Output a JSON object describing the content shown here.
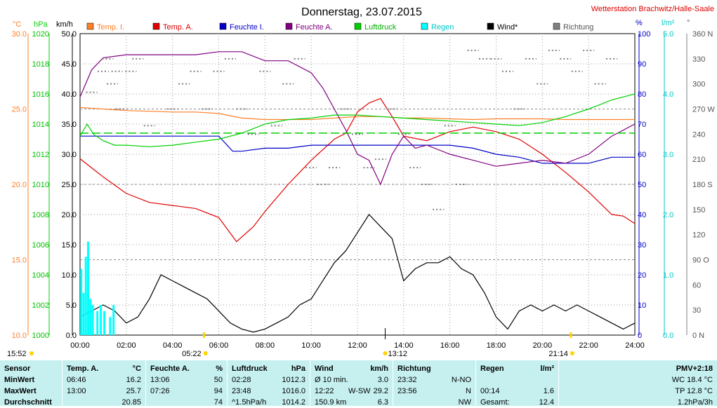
{
  "header": {
    "title": "Donnerstag, 23.07.2015",
    "station": "Wetterstation Brachwitz/Halle-Saale"
  },
  "colors": {
    "temp_inside": "#ff7f27",
    "temp_outside": "#e00000",
    "hum_inside": "#0000c8",
    "hum_outside": "#800080",
    "pressure": "#00d000",
    "rain": "#00ffff",
    "wind": "#000000",
    "direction": "#808080",
    "stats_bg": "#c6f0f0"
  },
  "chart_data": {
    "type": "line",
    "x_ticks": [
      "00:00",
      "02:00",
      "04:00",
      "06:00",
      "08:00",
      "10:00",
      "12:00",
      "14:00",
      "16:00",
      "18:00",
      "20:00",
      "22:00",
      "24:00"
    ],
    "x_range": [
      0,
      24
    ],
    "axes": {
      "temp": {
        "unit": "°C",
        "range": [
          10,
          30
        ],
        "ticks": [
          "30.0",
          "25.0",
          "20.0",
          "15.0",
          "10.0"
        ]
      },
      "pressure": {
        "unit": "hPa",
        "range": [
          1000,
          1020
        ],
        "ticks": [
          "1020",
          "1018",
          "1016",
          "1014",
          "1012",
          "1010",
          "1008",
          "1006",
          "1004",
          "1002",
          "1000"
        ]
      },
      "wind": {
        "unit": "km/h",
        "range": [
          0,
          50
        ],
        "ticks": [
          "50.0",
          "45.0",
          "40.0",
          "35.0",
          "30.0",
          "25.0",
          "20.0",
          "15.0",
          "10.0",
          "5.0",
          "0.0"
        ]
      },
      "humidity": {
        "unit": "%",
        "range": [
          0,
          100
        ],
        "ticks": [
          "100",
          "90",
          "80",
          "70",
          "60",
          "50",
          "40",
          "30",
          "20",
          "10",
          "0"
        ]
      },
      "rain": {
        "unit": "l/m²",
        "range": [
          0,
          5
        ],
        "ticks": [
          "5.0",
          "4.0",
          "3.0",
          "2.0",
          "1.0",
          "0.0"
        ]
      },
      "direction": {
        "unit": "°",
        "range": [
          0,
          360
        ],
        "ticks": [
          "360 N",
          "330",
          "300",
          "270 W",
          "240",
          "210",
          "180 S",
          "150",
          "120",
          "90 O",
          "60",
          "30",
          "0 N"
        ]
      }
    },
    "legend": [
      "Temp. I.",
      "Temp. A.",
      "Feuchte I.",
      "Feuchte A.",
      "Luftdruck",
      "Regen",
      "Wind*",
      "Richtung"
    ],
    "sun": {
      "sunrise": "05:22",
      "sunset": "21:14",
      "moonrise": "15:52",
      "moon_transit": "13:12"
    },
    "series": [
      {
        "name": "Temp. I.",
        "axis": "temp",
        "x": [
          0,
          1,
          2,
          3,
          4,
          5,
          6,
          7,
          8,
          9,
          10,
          11,
          12,
          13,
          14,
          15,
          16,
          17,
          18,
          19,
          20,
          21,
          22,
          23,
          24
        ],
        "values": [
          25.1,
          25.0,
          24.9,
          24.85,
          24.8,
          24.8,
          24.7,
          24.4,
          24.3,
          24.3,
          24.3,
          24.4,
          24.5,
          24.5,
          24.4,
          24.4,
          24.35,
          24.3,
          24.35,
          24.35,
          24.35,
          24.3,
          24.3,
          24.3,
          24.3
        ]
      },
      {
        "name": "Temp. A.",
        "axis": "temp",
        "x": [
          0,
          1,
          2,
          3,
          4,
          5,
          6,
          6.77,
          7.5,
          8,
          9,
          10,
          11,
          11.5,
          12,
          12.5,
          13,
          13.5,
          14,
          15,
          16,
          17,
          18,
          19,
          20,
          21,
          22,
          23,
          23.5,
          24
        ],
        "values": [
          21.7,
          20.5,
          19.4,
          18.8,
          18.6,
          18.4,
          17.8,
          16.2,
          17.2,
          18.2,
          20.0,
          21.6,
          23.0,
          23.4,
          24.8,
          25.4,
          25.7,
          24.5,
          23.2,
          22.9,
          23.5,
          23.8,
          23.5,
          23.0,
          22.0,
          20.8,
          19.5,
          18.0,
          17.9,
          17.4
        ]
      },
      {
        "name": "Feuchte I.",
        "axis": "humidity",
        "x": [
          0,
          1,
          2,
          3,
          4,
          5,
          6,
          6.6,
          7,
          8,
          9,
          10,
          11,
          12,
          13,
          14,
          15,
          16,
          17,
          18,
          19,
          20,
          21,
          22,
          23,
          24
        ],
        "values": [
          66,
          66,
          66,
          66,
          66,
          66,
          66,
          61,
          61,
          62,
          62,
          63,
          63,
          63,
          63,
          63,
          63,
          63,
          62,
          60,
          59,
          57,
          57,
          57,
          59,
          59
        ]
      },
      {
        "name": "Feuchte A.",
        "axis": "humidity",
        "x": [
          0,
          0.5,
          1,
          2,
          3,
          4,
          5,
          6,
          7,
          8,
          9,
          10,
          10.5,
          11,
          11.5,
          12,
          12.5,
          13,
          13.5,
          14,
          14.5,
          15,
          16,
          17,
          18,
          19,
          20,
          21,
          22,
          23,
          24
        ],
        "values": [
          79,
          88,
          92,
          93,
          93,
          93,
          93,
          94,
          94,
          91,
          91,
          87,
          82,
          75,
          68,
          60,
          58,
          50,
          60,
          66,
          62,
          63,
          60,
          58,
          56,
          57,
          58,
          57,
          60,
          66,
          70
        ]
      },
      {
        "name": "Luftdruck",
        "axis": "pressure",
        "x": [
          0,
          0.3,
          0.6,
          1,
          1.5,
          2,
          3,
          4,
          5,
          6,
          7,
          8,
          9,
          10,
          11,
          12,
          13,
          14,
          15,
          16,
          17,
          18,
          19,
          20,
          21,
          22,
          23,
          24
        ],
        "values": [
          1013.2,
          1014.0,
          1013.3,
          1012.9,
          1012.6,
          1012.6,
          1012.5,
          1012.6,
          1012.8,
          1013.0,
          1013.4,
          1014.0,
          1014.3,
          1014.4,
          1014.6,
          1014.6,
          1014.5,
          1014.4,
          1014.3,
          1014.2,
          1014.1,
          1014.0,
          1013.9,
          1014.1,
          1014.5,
          1015.0,
          1015.6,
          1016.0
        ]
      },
      {
        "name": "Luftdruck Ø",
        "axis": "pressure",
        "x": [
          0,
          24
        ],
        "values": [
          1013.4,
          1013.4
        ]
      },
      {
        "name": "Wind*",
        "axis": "wind",
        "x": [
          0,
          0.5,
          1,
          1.5,
          2,
          2.5,
          3,
          3.5,
          4,
          4.5,
          5,
          5.5,
          6,
          6.5,
          7,
          7.5,
          8,
          8.5,
          9,
          9.5,
          10,
          10.5,
          11,
          11.5,
          12,
          12.5,
          13,
          13.5,
          14,
          14.5,
          15,
          15.5,
          16,
          16.5,
          17,
          17.5,
          18,
          18.5,
          19,
          19.5,
          20,
          20.5,
          21,
          21.5,
          22,
          22.5,
          23,
          23.5,
          24
        ],
        "values": [
          3,
          4,
          5,
          4,
          2,
          3,
          6,
          10,
          9,
          8,
          7,
          6,
          4,
          2,
          1,
          0.5,
          1,
          2,
          3,
          5,
          6,
          9,
          12,
          14,
          17,
          20,
          18,
          16,
          9,
          11,
          12,
          12,
          13,
          11,
          10,
          7,
          3,
          1,
          4,
          5,
          4,
          5,
          4,
          5,
          4,
          3,
          2,
          1,
          2
        ]
      },
      {
        "name": "Regen",
        "axis": "rain",
        "x": [
          0.05,
          0.15,
          0.25,
          0.35,
          0.45,
          0.55,
          0.75,
          0.9,
          1.05,
          1.3,
          1.45
        ],
        "values": [
          1.1,
          0.7,
          1.3,
          1.55,
          0.6,
          0.5,
          0.4,
          0.5,
          0.4,
          0.3,
          0.5
        ]
      },
      {
        "name": "Richtung",
        "axis": "direction",
        "x": [
          0.5,
          1,
          1.2,
          1.4,
          1.6,
          1.8,
          2.2,
          2.5,
          3,
          4,
          4.5,
          5,
          5.5,
          6,
          6.5,
          7,
          7.5,
          8,
          8.5,
          9,
          9.5,
          10,
          10.5,
          11,
          11.5,
          12,
          12.5,
          13,
          13.5,
          14,
          14.5,
          15,
          15.5,
          16,
          16.5,
          17,
          17.5,
          18,
          18.5,
          19,
          19.5,
          20,
          20.5,
          21,
          21.5,
          22,
          22.5,
          23
        ],
        "values": [
          290,
          315,
          330,
          300,
          315,
          270,
          315,
          330,
          250,
          270,
          300,
          315,
          270,
          315,
          330,
          270,
          240,
          315,
          250,
          300,
          330,
          200,
          180,
          200,
          270,
          240,
          200,
          210,
          270,
          240,
          200,
          180,
          150,
          250,
          180,
          340,
          330,
          330,
          315,
          270,
          330,
          300,
          340,
          330,
          315,
          340,
          300,
          330
        ]
      }
    ]
  },
  "stats": {
    "sensor": {
      "header": "Sensor",
      "rows": [
        "MinWert",
        "MaxWert",
        "Durchschnitt"
      ]
    },
    "temp": {
      "header": "Temp. A.",
      "unit": "°C",
      "times": [
        "06:46",
        "13:00",
        ""
      ],
      "values": [
        "16.2",
        "25.7",
        "20.85"
      ]
    },
    "hum": {
      "header": "Feuchte A.",
      "unit": "%",
      "times": [
        "13:06",
        "07:26",
        ""
      ],
      "values": [
        "50",
        "94",
        "74"
      ]
    },
    "pressure": {
      "header": "Luftdruck",
      "unit": "hPa",
      "times": [
        "02:28",
        "23:48",
        "^1.5hPa/h"
      ],
      "values": [
        "1012.3",
        "1016.0",
        "1014.2"
      ]
    },
    "wind": {
      "header": "Wind",
      "unit": "km/h",
      "labels": [
        "Ø 10 min.",
        "12:22",
        "150.9 km"
      ],
      "mid": [
        "",
        "W-SW",
        ""
      ],
      "values": [
        "3.0",
        "29.2",
        "6.3"
      ]
    },
    "dir": {
      "header": "Richtung",
      "times": [
        "23:32",
        "23:56",
        ""
      ],
      "values": [
        "N-NO",
        "N",
        "NW"
      ]
    },
    "rain": {
      "header": "Regen",
      "unit": "l/m²",
      "labels": [
        "",
        "00:14",
        "Gesamt:"
      ],
      "values": [
        "",
        "1.6",
        "12.4"
      ]
    },
    "pmv": {
      "header": "PMV+2:18",
      "rows": [
        "WC 18.4 °C",
        "TP 12.8 °C",
        "1.2hPa/3h"
      ]
    }
  }
}
